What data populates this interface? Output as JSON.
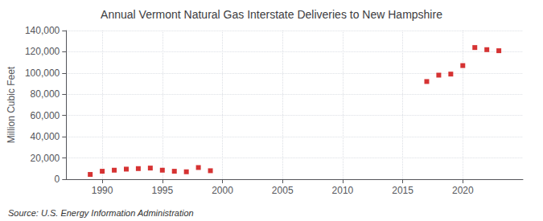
{
  "chart_data": {
    "type": "scatter",
    "title": "Annual Vermont Natural Gas Interstate Deliveries to New Hampshire",
    "ylabel": "Million Cubic Feet",
    "annotations": [
      "Source: U.S. Energy Information Administration"
    ],
    "x": [
      1989,
      1990,
      1991,
      1992,
      1993,
      1994,
      1995,
      1996,
      1997,
      1998,
      1999,
      2017,
      2018,
      2019,
      2020,
      2021,
      2022,
      2023
    ],
    "values": [
      4500,
      7500,
      8500,
      9500,
      10000,
      10500,
      8500,
      7500,
      7000,
      11000,
      8000,
      92000,
      98000,
      99000,
      107000,
      124000,
      122000,
      121000
    ],
    "color": "#cc0000",
    "marker": "square",
    "xlim": [
      1987,
      2025
    ],
    "ylim": [
      0,
      140000
    ],
    "xticks": [
      1990,
      1995,
      2000,
      2005,
      2010,
      2015,
      2020
    ],
    "yticks": [
      0,
      {
        "value": 20000,
        "label": "20,000"
      },
      {
        "value": 40000,
        "label": "40,000"
      },
      {
        "value": 60000,
        "label": "60,000"
      },
      {
        "value": 80000,
        "label": "80,000"
      },
      {
        "value": 100000,
        "label": "100,000"
      },
      {
        "value": 120000,
        "label": "120,000"
      },
      {
        "value": 140000,
        "label": "140,000"
      }
    ],
    "grid": true
  }
}
